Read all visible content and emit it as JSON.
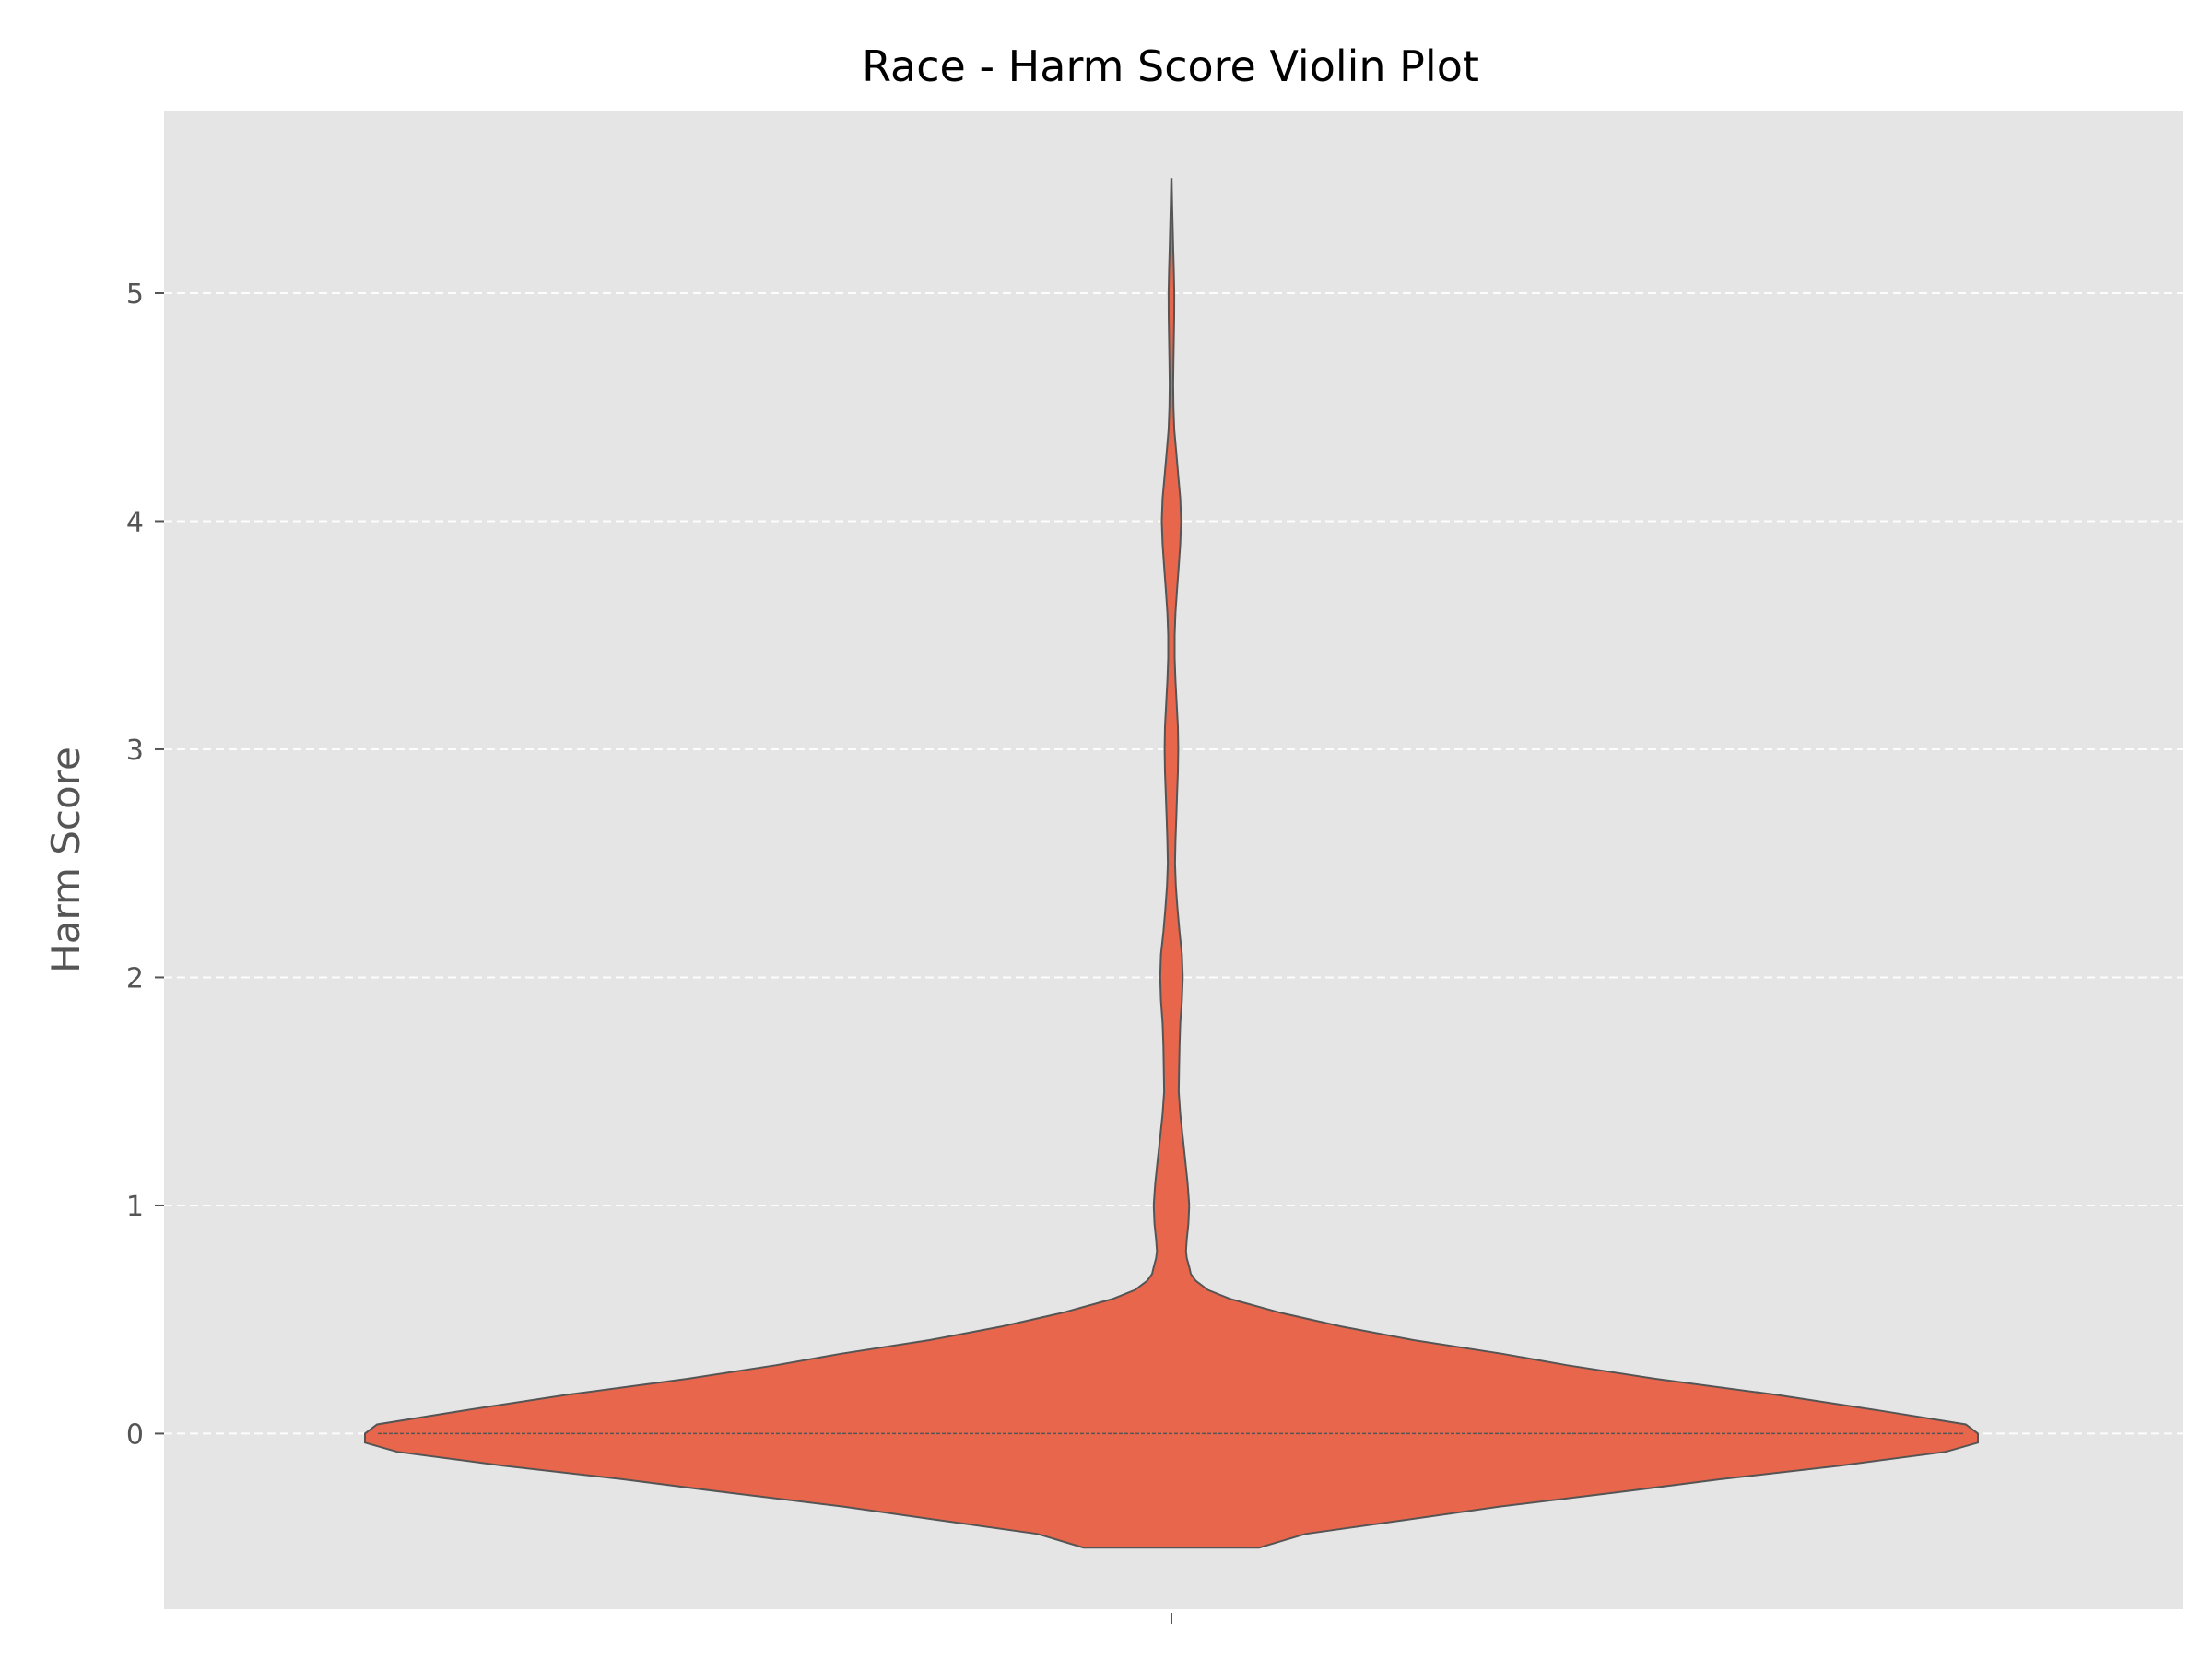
{
  "chart_data": {
    "type": "violin",
    "title": "Race - Harm Score Violin Plot",
    "xlabel": "",
    "ylabel": "Harm Score",
    "ylim": [
      -0.77,
      5.8
    ],
    "yticks": [
      0,
      1,
      2,
      3,
      4,
      5
    ],
    "grid": true,
    "grid_style": "dashed horizontal",
    "colors": {
      "background": "#e5e5e5",
      "violin_fill": "#e8674c",
      "violin_edge": "#555555",
      "grid": "#ffffff"
    },
    "density_profile": {
      "y": [
        -0.5,
        -0.44,
        -0.38,
        -0.32,
        -0.26,
        -0.2,
        -0.14,
        -0.08,
        -0.04,
        0.0,
        0.04,
        0.1,
        0.17,
        0.24,
        0.3,
        0.35,
        0.41,
        0.47,
        0.53,
        0.59,
        0.63,
        0.67,
        0.7,
        0.73,
        0.77,
        0.8,
        0.85,
        0.92,
        1.0,
        1.05,
        1.1,
        1.2,
        1.3,
        1.4,
        1.5,
        1.6,
        1.7,
        1.8,
        1.9,
        2.0,
        2.1,
        2.2,
        2.3,
        2.4,
        2.5,
        2.6,
        2.7,
        2.8,
        2.9,
        3.0,
        3.1,
        3.2,
        3.3,
        3.4,
        3.5,
        3.6,
        3.7,
        3.8,
        3.9,
        4.0,
        4.1,
        4.2,
        4.3,
        4.4,
        4.5,
        4.6,
        4.7,
        4.8,
        4.9,
        5.0,
        5.1,
        5.2,
        5.3,
        5.4,
        5.5
      ],
      "half_width": [
        0.109,
        0.166,
        0.287,
        0.407,
        0.547,
        0.681,
        0.83,
        0.96,
        1.0,
        1.0,
        0.985,
        0.88,
        0.75,
        0.6,
        0.49,
        0.41,
        0.3,
        0.21,
        0.135,
        0.073,
        0.045,
        0.03,
        0.024,
        0.022,
        0.019,
        0.018,
        0.019,
        0.021,
        0.022,
        0.021,
        0.02,
        0.017,
        0.014,
        0.011,
        0.009,
        0.0095,
        0.01,
        0.011,
        0.013,
        0.014,
        0.013,
        0.01,
        0.0075,
        0.0055,
        0.0045,
        0.005,
        0.006,
        0.007,
        0.008,
        0.0085,
        0.008,
        0.0065,
        0.005,
        0.004,
        0.004,
        0.005,
        0.007,
        0.009,
        0.011,
        0.012,
        0.011,
        0.0085,
        0.006,
        0.0035,
        0.0025,
        0.0022,
        0.0025,
        0.003,
        0.0034,
        0.0035,
        0.003,
        0.0022,
        0.0015,
        0.0008,
        0.0002
      ]
    },
    "median": 0
  }
}
